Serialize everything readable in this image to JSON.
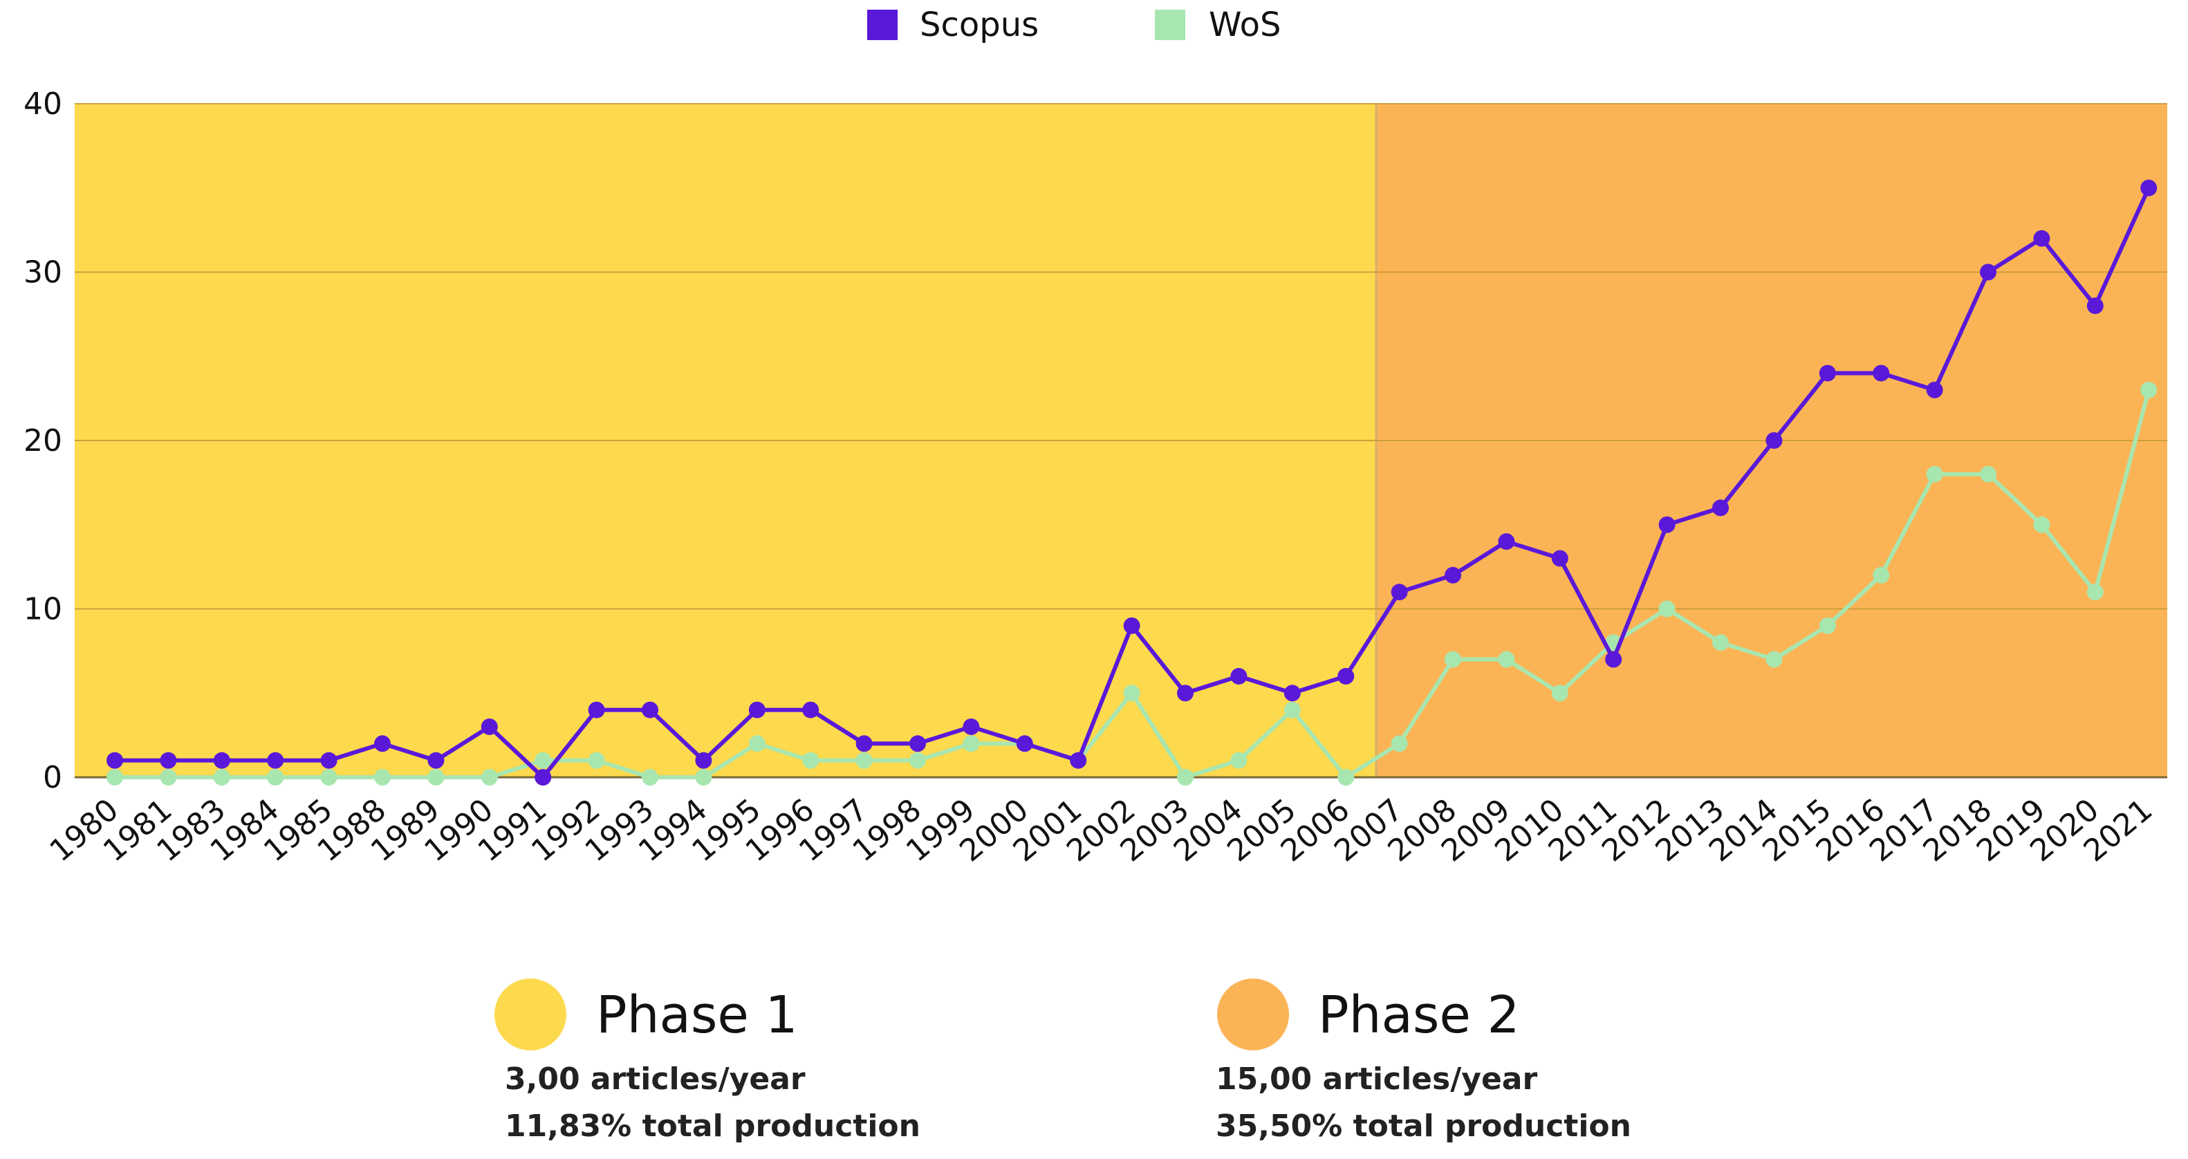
{
  "chart_data": {
    "type": "line",
    "title": "",
    "xlabel": "",
    "ylabel": "",
    "ylim": [
      0,
      40
    ],
    "yticks": [
      0,
      10,
      20,
      30,
      40
    ],
    "grid": true,
    "legend_position": "top-center",
    "categories": [
      "1980",
      "1981",
      "1983",
      "1984",
      "1985",
      "1988",
      "1989",
      "1990",
      "1991",
      "1992",
      "1993",
      "1994",
      "1995",
      "1996",
      "1997",
      "1998",
      "1999",
      "2000",
      "2001",
      "2002",
      "2003",
      "2004",
      "2005",
      "2006",
      "2007",
      "2008",
      "2009",
      "2010",
      "2011",
      "2012",
      "2013",
      "2014",
      "2015",
      "2016",
      "2017",
      "2018",
      "2019",
      "2020",
      "2021"
    ],
    "series": [
      {
        "name": "Scopus",
        "color": "#5a19d8",
        "values": [
          1,
          1,
          1,
          1,
          1,
          2,
          1,
          3,
          0,
          4,
          4,
          1,
          4,
          4,
          2,
          2,
          3,
          2,
          1,
          9,
          5,
          6,
          5,
          6,
          11,
          12,
          14,
          13,
          7,
          15,
          16,
          20,
          24,
          24,
          23,
          30,
          32,
          28,
          35
        ]
      },
      {
        "name": "WoS",
        "color": "#a8e6b0",
        "values": [
          0,
          0,
          0,
          0,
          0,
          0,
          0,
          0,
          1,
          1,
          0,
          0,
          2,
          1,
          1,
          1,
          2,
          2,
          1,
          5,
          0,
          1,
          4,
          0,
          2,
          7,
          7,
          5,
          8,
          10,
          8,
          7,
          9,
          12,
          18,
          18,
          15,
          11,
          23
        ]
      }
    ],
    "phases": [
      {
        "name": "Phase 1",
        "start": "1980",
        "end": "2006",
        "color": "#fdd94e",
        "rate": "3,00 articles/year",
        "share": "11,83% total production"
      },
      {
        "name": "Phase 2",
        "start": "2007",
        "end": "2021",
        "color": "#fbb455",
        "rate": "15,00 articles/year",
        "share": "35,50% total production"
      }
    ]
  }
}
